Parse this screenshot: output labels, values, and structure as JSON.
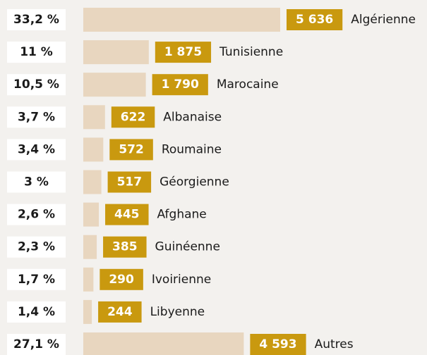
{
  "chart_data": {
    "type": "bar",
    "categories": [
      "Algérienne",
      "Tunisienne",
      "Marocaine",
      "Albanaise",
      "Roumaine",
      "Géorgienne",
      "Afghane",
      "Guinéenne",
      "Ivoirienne",
      "Libyenne",
      "Autres"
    ],
    "values": [
      5636,
      1875,
      1790,
      622,
      572,
      517,
      445,
      385,
      290,
      244,
      4593
    ],
    "value_labels": [
      "5 636",
      "1 875",
      "1 790",
      "622",
      "572",
      "517",
      "445",
      "385",
      "290",
      "244",
      "4 593"
    ],
    "shares": [
      33.2,
      11,
      10.5,
      3.7,
      3.4,
      3,
      2.6,
      2.3,
      1.7,
      1.4,
      27.1
    ],
    "share_labels": [
      "33,2 %",
      "11 %",
      "10,5 %",
      "3,7 %",
      "3,4 %",
      "3 %",
      "2,6 %",
      "2,3 %",
      "1,7 %",
      "1,4 %",
      "27,1 %"
    ],
    "color": "#e8d6bf",
    "label_color": "#c9990f"
  }
}
